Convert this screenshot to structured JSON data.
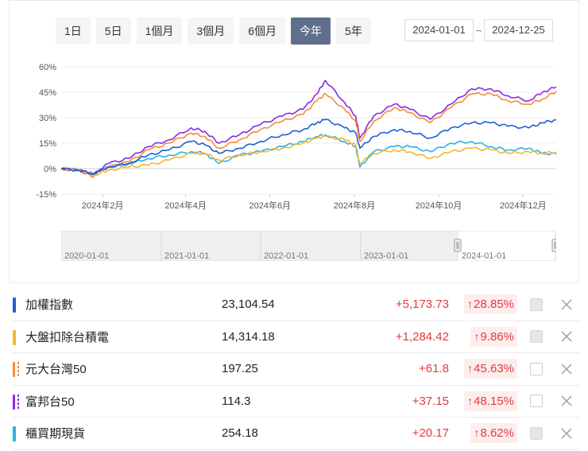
{
  "range_tabs": [
    {
      "label": "1日",
      "active": false
    },
    {
      "label": "5日",
      "active": false
    },
    {
      "label": "1個月",
      "active": false
    },
    {
      "label": "3個月",
      "active": false
    },
    {
      "label": "6個月",
      "active": false
    },
    {
      "label": "今年",
      "active": true
    },
    {
      "label": "5年",
      "active": false
    }
  ],
  "date_range": {
    "start": "2024-01-01",
    "separator": "~",
    "end": "2024-12-25"
  },
  "navigator": {
    "labels": [
      "2020-01-01",
      "2021-01-01",
      "2022-01-01",
      "2023-01-01",
      "2024-01-01"
    ]
  },
  "colors": {
    "taiex": "#1f5fd6",
    "ex_tsmc": "#f5b82e",
    "yuanta50": "#f28c3f",
    "fubon50": "#8a2be2",
    "otc": "#2bb2e6",
    "up": "#e4393c"
  },
  "chart_data": {
    "type": "line",
    "title": "",
    "xlabel": "",
    "ylabel": "",
    "ylim": [
      -15,
      60
    ],
    "yticks": [
      "60%",
      "45%",
      "30%",
      "15%",
      "0%",
      "-15%"
    ],
    "xticks": [
      "2024年2月",
      "2024年4月",
      "2024年6月",
      "2024年8月",
      "2024年10月",
      "2024年12月"
    ],
    "grid": true,
    "legend": "none (table below)",
    "x": [
      "2024-01-02",
      "2024-01-15",
      "2024-01-25",
      "2024-02-05",
      "2024-02-20",
      "2024-03-05",
      "2024-03-20",
      "2024-04-05",
      "2024-04-15",
      "2024-04-25",
      "2024-05-10",
      "2024-05-25",
      "2024-06-10",
      "2024-06-25",
      "2024-07-05",
      "2024-07-11",
      "2024-07-25",
      "2024-08-02",
      "2024-08-05",
      "2024-08-15",
      "2024-08-30",
      "2024-09-10",
      "2024-09-25",
      "2024-10-10",
      "2024-10-25",
      "2024-11-08",
      "2024-11-20",
      "2024-12-05",
      "2024-12-15",
      "2024-12-25"
    ],
    "series": [
      {
        "name": "加權指數",
        "color": "#1f5fd6",
        "values": [
          0,
          -1,
          -3,
          1,
          3,
          8,
          11,
          16,
          14,
          9,
          12,
          16,
          20,
          23,
          27,
          29,
          24,
          21,
          12,
          19,
          23,
          22,
          18,
          24,
          27,
          27,
          25,
          24,
          27,
          28.85
        ]
      },
      {
        "name": "大盤扣除台積電",
        "color": "#f5b82e",
        "values": [
          0,
          -1,
          -4,
          -1,
          1,
          2,
          5,
          9,
          9,
          5,
          8,
          10,
          12,
          15,
          18,
          19,
          17,
          14,
          3,
          9,
          11,
          10,
          6,
          10,
          12,
          11,
          9,
          10,
          9,
          9.86
        ]
      },
      {
        "name": "元大台灣50",
        "color": "#f28c3f",
        "values": [
          0,
          -1,
          -5,
          1,
          4,
          11,
          15,
          21,
          19,
          12,
          17,
          23,
          28,
          32,
          40,
          44,
          35,
          28,
          16,
          28,
          36,
          33,
          27,
          36,
          44,
          44,
          40,
          38,
          41,
          45.63
        ]
      },
      {
        "name": "富邦台50",
        "color": "#8a2be2",
        "values": [
          0,
          -1,
          -4,
          3,
          6,
          13,
          17,
          24,
          22,
          15,
          20,
          26,
          31,
          35,
          44,
          52,
          39,
          31,
          18,
          31,
          38,
          35,
          29,
          38,
          47,
          47,
          43,
          40,
          45,
          48.15
        ]
      },
      {
        "name": "櫃買期現貨",
        "color": "#2bb2e6",
        "values": [
          0,
          -1,
          -3,
          1,
          3,
          6,
          8,
          10,
          9,
          3,
          8,
          10,
          13,
          16,
          19,
          20,
          16,
          13,
          1,
          10,
          13,
          13,
          10,
          15,
          16,
          13,
          11,
          12,
          9,
          8.62
        ]
      }
    ]
  },
  "rows": [
    {
      "name": "加權指數",
      "price": "23,104.54",
      "change": "+5,173.73",
      "pct_arrow": "↑",
      "pct": "28.85%",
      "color": "#1f5fd6",
      "dashed": false,
      "checked_fill": true
    },
    {
      "name": "大盤扣除台積電",
      "price": "14,314.18",
      "change": "+1,284.42",
      "pct_arrow": "↑",
      "pct": "9.86%",
      "color": "#f5b82e",
      "dashed": false,
      "checked_fill": true
    },
    {
      "name": "元大台灣50",
      "price": "197.25",
      "change": "+61.8",
      "pct_arrow": "↑",
      "pct": "45.63%",
      "color": "#f28c3f",
      "dashed": true,
      "checked_fill": false
    },
    {
      "name": "富邦台50",
      "price": "114.3",
      "change": "+37.15",
      "pct_arrow": "↑",
      "pct": "48.15%",
      "color": "#8a2be2",
      "dashed": true,
      "checked_fill": false
    },
    {
      "name": "櫃買期現貨",
      "price": "254.18",
      "change": "+20.17",
      "pct_arrow": "↑",
      "pct": "8.62%",
      "color": "#2bb2e6",
      "dashed": false,
      "checked_fill": true
    }
  ]
}
